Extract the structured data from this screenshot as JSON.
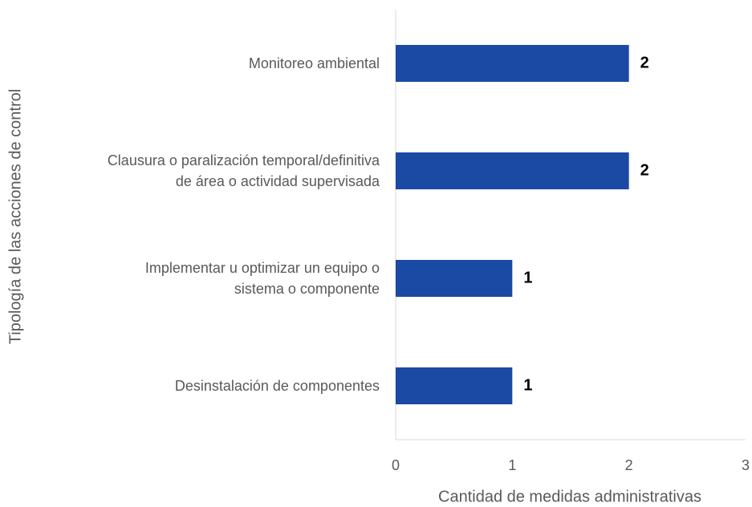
{
  "chart_data": {
    "type": "barh",
    "categories": [
      "Monitoreo ambiental",
      "Clausura o paralización temporal/definitiva\nde área o actividad supervisada",
      "Implementar u optimizar un equipo o\nsistema o componente",
      "Desinstalación de componentes"
    ],
    "values": [
      2,
      2,
      1,
      1
    ],
    "color": "#1a4aa3",
    "xlim": [
      0,
      3
    ],
    "xticks": [
      0,
      1,
      2,
      3
    ],
    "xlabel": "Cantidad de medidas administrativas",
    "ylabel": "Tipología de las acciones de control",
    "grid": false
  }
}
